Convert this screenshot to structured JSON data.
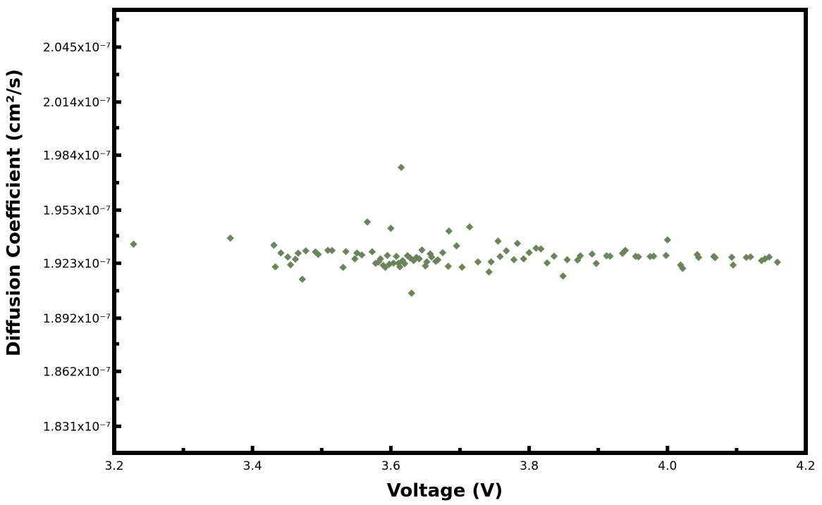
{
  "chart_data": {
    "type": "scatter",
    "title": "",
    "xlabel": "Voltage (V)",
    "ylabel": "Diffusion Coefficient (cm²/s)",
    "xlim": [
      3.2,
      4.2
    ],
    "ylim": [
      1.816e-07,
      2.066e-07
    ],
    "x_ticks": [
      3.2,
      3.4,
      3.6,
      3.8,
      4.0,
      4.2
    ],
    "x_tick_labels": [
      "3.2",
      "3.4",
      "3.6",
      "3.8",
      "4.0",
      "4.2"
    ],
    "y_ticks": [
      1.831e-07,
      1.862e-07,
      1.892e-07,
      1.923e-07,
      1.953e-07,
      1.984e-07,
      2.014e-07,
      2.045e-07
    ],
    "y_tick_labels": [
      "1.831x10⁻⁷",
      "1.862x10⁻⁷",
      "1.892x10⁻⁷",
      "1.923x10⁻⁷",
      "1.953x10⁻⁷",
      "1.984x10⁻⁷",
      "2.014x10⁻⁷",
      "2.045x10⁻⁷"
    ],
    "grid": false,
    "marker": "diamond",
    "color": "#6b8459",
    "series": [
      {
        "points": [
          [
            3.228,
            1.9338e-07
          ],
          [
            3.368,
            1.9372e-07
          ],
          [
            3.431,
            1.9332e-07
          ],
          [
            3.433,
            1.921e-07
          ],
          [
            3.441,
            1.9288e-07
          ],
          [
            3.451,
            1.9265e-07
          ],
          [
            3.455,
            1.9221e-07
          ],
          [
            3.462,
            1.9253e-07
          ],
          [
            3.466,
            1.9287e-07
          ],
          [
            3.472,
            1.914e-07
          ],
          [
            3.477,
            1.93e-07
          ],
          [
            3.491,
            1.9294e-07
          ],
          [
            3.495,
            1.928e-07
          ],
          [
            3.509,
            1.9303e-07
          ],
          [
            3.515,
            1.9302e-07
          ],
          [
            3.531,
            1.9207e-07
          ],
          [
            3.535,
            1.9296e-07
          ],
          [
            3.548,
            1.9255e-07
          ],
          [
            3.551,
            1.9288e-07
          ],
          [
            3.558,
            1.9277e-07
          ],
          [
            3.566,
            1.9463e-07
          ],
          [
            3.573,
            1.9295e-07
          ],
          [
            3.578,
            1.923e-07
          ],
          [
            3.582,
            1.9237e-07
          ],
          [
            3.585,
            1.9255e-07
          ],
          [
            3.589,
            1.9218e-07
          ],
          [
            3.592,
            1.9207e-07
          ],
          [
            3.595,
            1.9274e-07
          ],
          [
            3.598,
            1.9225e-07
          ],
          [
            3.6,
            1.9427e-07
          ],
          [
            3.604,
            1.9231e-07
          ],
          [
            3.608,
            1.9269e-07
          ],
          [
            3.611,
            1.923e-07
          ],
          [
            3.613,
            1.921e-07
          ],
          [
            3.615,
            1.9771e-07
          ],
          [
            3.617,
            1.9245e-07
          ],
          [
            3.62,
            1.9228e-07
          ],
          [
            3.624,
            1.9273e-07
          ],
          [
            3.628,
            1.926e-07
          ],
          [
            3.63,
            1.9061e-07
          ],
          [
            3.633,
            1.9245e-07
          ],
          [
            3.637,
            1.9263e-07
          ],
          [
            3.641,
            1.9255e-07
          ],
          [
            3.645,
            1.9305e-07
          ],
          [
            3.65,
            1.9215e-07
          ],
          [
            3.652,
            1.9238e-07
          ],
          [
            3.657,
            1.9283e-07
          ],
          [
            3.659,
            1.9265e-07
          ],
          [
            3.665,
            1.9241e-07
          ],
          [
            3.668,
            1.9249e-07
          ],
          [
            3.675,
            1.929e-07
          ],
          [
            3.683,
            1.9213e-07
          ],
          [
            3.684,
            1.9412e-07
          ],
          [
            3.695,
            1.9328e-07
          ],
          [
            3.703,
            1.9208e-07
          ],
          [
            3.714,
            1.9435e-07
          ],
          [
            3.726,
            1.9238e-07
          ],
          [
            3.742,
            1.9181e-07
          ],
          [
            3.745,
            1.9238e-07
          ],
          [
            3.755,
            1.9355e-07
          ],
          [
            3.758,
            1.9268e-07
          ],
          [
            3.767,
            1.93e-07
          ],
          [
            3.778,
            1.925e-07
          ],
          [
            3.783,
            1.9342e-07
          ],
          [
            3.792,
            1.9255e-07
          ],
          [
            3.8,
            1.929e-07
          ],
          [
            3.81,
            1.9315e-07
          ],
          [
            3.817,
            1.9311e-07
          ],
          [
            3.826,
            1.9232e-07
          ],
          [
            3.836,
            1.927e-07
          ],
          [
            3.849,
            1.9158e-07
          ],
          [
            3.855,
            1.925e-07
          ],
          [
            3.87,
            1.9248e-07
          ],
          [
            3.874,
            1.9272e-07
          ],
          [
            3.891,
            1.9282e-07
          ],
          [
            3.897,
            1.9229e-07
          ],
          [
            3.912,
            1.9272e-07
          ],
          [
            3.917,
            1.927e-07
          ],
          [
            3.935,
            1.9286e-07
          ],
          [
            3.939,
            1.9303e-07
          ],
          [
            3.954,
            1.9269e-07
          ],
          [
            3.958,
            1.9266e-07
          ],
          [
            3.975,
            1.9268e-07
          ],
          [
            3.98,
            1.927e-07
          ],
          [
            3.998,
            1.9274e-07
          ],
          [
            4.0,
            1.9362e-07
          ],
          [
            4.019,
            1.922e-07
          ],
          [
            4.022,
            1.9201e-07
          ],
          [
            4.043,
            1.9279e-07
          ],
          [
            4.045,
            1.9263e-07
          ],
          [
            4.067,
            1.9268e-07
          ],
          [
            4.069,
            1.9262e-07
          ],
          [
            4.093,
            1.9264e-07
          ],
          [
            4.095,
            1.922e-07
          ],
          [
            4.114,
            1.9263e-07
          ],
          [
            4.12,
            1.9266e-07
          ],
          [
            4.136,
            1.9245e-07
          ],
          [
            4.141,
            1.9255e-07
          ],
          [
            4.147,
            1.9265e-07
          ],
          [
            4.159,
            1.9236e-07
          ]
        ]
      }
    ]
  }
}
